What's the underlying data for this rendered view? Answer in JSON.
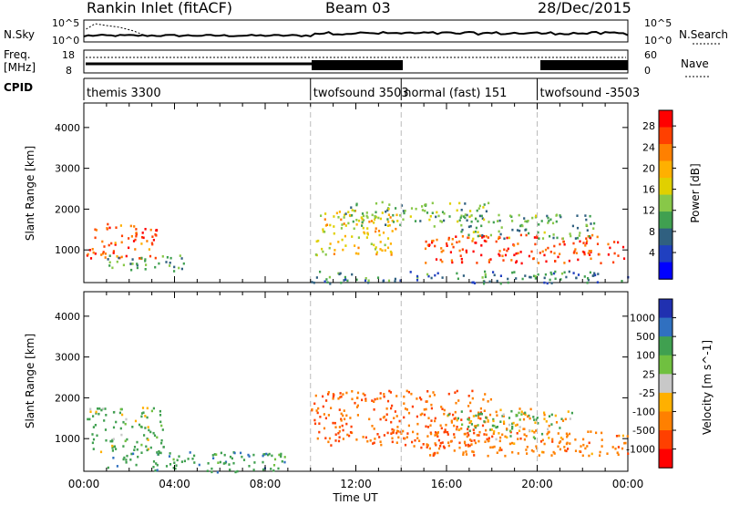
{
  "header": {
    "station": "Rankin Inlet (fitACF)",
    "beam": "Beam 03",
    "date": "28/Dec/2015"
  },
  "summary_panels": {
    "nsky_label": "N.Sky",
    "nsky_ticks": [
      "10^5",
      "10^0"
    ],
    "nsky_right_ticks": [
      "10^5",
      "10^0"
    ],
    "nsearch_label": "N.Search",
    "freq_label_1": "Freq.",
    "freq_label_2": "[MHz]",
    "freq_ticks": [
      "18",
      "8"
    ],
    "nave_label": "Nave",
    "nave_ticks": [
      "60",
      "0"
    ],
    "cpid_label": "CPID",
    "cpid_segments": [
      {
        "label": "themis 3300",
        "start_h": 0,
        "end_h": 10
      },
      {
        "label": "twofsound 3503",
        "start_h": 10,
        "end_h": 14
      },
      {
        "label": "normal (fast) 151",
        "start_h": 14,
        "end_h": 20
      },
      {
        "label": "twofsound -3503",
        "start_h": 20,
        "end_h": 24
      }
    ]
  },
  "chart_data": [
    {
      "type": "heatmap",
      "panel": "power",
      "ylabel": "Slant Range [km]",
      "xlabel": "",
      "x_ticks": [
        "00:00",
        "04:00",
        "08:00",
        "12:00",
        "16:00",
        "20:00",
        "00:00"
      ],
      "y_ticks": [
        1000,
        2000,
        3000,
        4000
      ],
      "ylim": [
        200,
        4600
      ],
      "xlim_hours": [
        0,
        24
      ],
      "colorbar_label": "Power [dB]",
      "colorbar_ticks": [
        "28",
        "24",
        "20",
        "16",
        "12",
        "8",
        "4"
      ],
      "colorbar_colors": [
        "#ff0000",
        "#ff4000",
        "#ff8000",
        "#ffb000",
        "#e0d000",
        "#88c848",
        "#40a050",
        "#306080",
        "#2040c0",
        "#0000ff"
      ],
      "regions": [
        {
          "x0": 0.1,
          "x1": 3.2,
          "r0": 800,
          "r1": 1700,
          "intensity": 26
        },
        {
          "x0": 1.0,
          "x1": 4.5,
          "r0": 500,
          "r1": 900,
          "intensity": 10
        },
        {
          "x0": 10.2,
          "x1": 13.8,
          "r0": 900,
          "r1": 2000,
          "intensity": 18
        },
        {
          "x0": 11.5,
          "x1": 18.0,
          "r0": 1600,
          "r1": 2200,
          "intensity": 12
        },
        {
          "x0": 15.0,
          "x1": 23.8,
          "r0": 700,
          "r1": 1400,
          "intensity": 27
        },
        {
          "x0": 16.5,
          "x1": 22.5,
          "r0": 1300,
          "r1": 1900,
          "intensity": 11
        },
        {
          "x0": 10.0,
          "x1": 24.0,
          "r0": 200,
          "r1": 500,
          "intensity": 8
        }
      ]
    },
    {
      "type": "heatmap",
      "panel": "velocity",
      "ylabel": "Slant Range [km]",
      "xlabel": "Time UT",
      "x_ticks": [
        "00:00",
        "04:00",
        "08:00",
        "12:00",
        "16:00",
        "20:00",
        "00:00"
      ],
      "y_ticks": [
        1000,
        2000,
        3000,
        4000
      ],
      "ylim": [
        200,
        4600
      ],
      "xlim_hours": [
        0,
        24
      ],
      "colorbar_label": "Velocity [m s^-1]",
      "colorbar_ticks": [
        "1000",
        "500",
        "100",
        "25",
        "-25",
        "-100",
        "-500",
        "-1000"
      ],
      "colorbar_colors": [
        "#2030b0",
        "#3070c0",
        "#40a050",
        "#70c040",
        "#c8c8c8",
        "#ffb000",
        "#ff8000",
        "#ff4000",
        "#ff0000"
      ],
      "regions": [
        {
          "x0": 0.1,
          "x1": 3.5,
          "r0": 700,
          "r1": 1800,
          "velocity": 100
        },
        {
          "x0": 1.0,
          "x1": 9.0,
          "r0": 200,
          "r1": 700,
          "velocity": 200
        },
        {
          "x0": 10.0,
          "x1": 18.0,
          "r0": 800,
          "r1": 2200,
          "velocity": -300
        },
        {
          "x0": 15.0,
          "x1": 24.0,
          "r0": 600,
          "r1": 1200,
          "velocity": -200
        },
        {
          "x0": 16.0,
          "x1": 20.0,
          "r0": 1200,
          "r1": 1800,
          "velocity": 50
        },
        {
          "x0": 18.0,
          "x1": 21.5,
          "r0": 1000,
          "r1": 1700,
          "velocity": 0
        }
      ]
    }
  ],
  "colors": {
    "axis": "#000000",
    "dashed_marker": "#bbbbbb"
  }
}
